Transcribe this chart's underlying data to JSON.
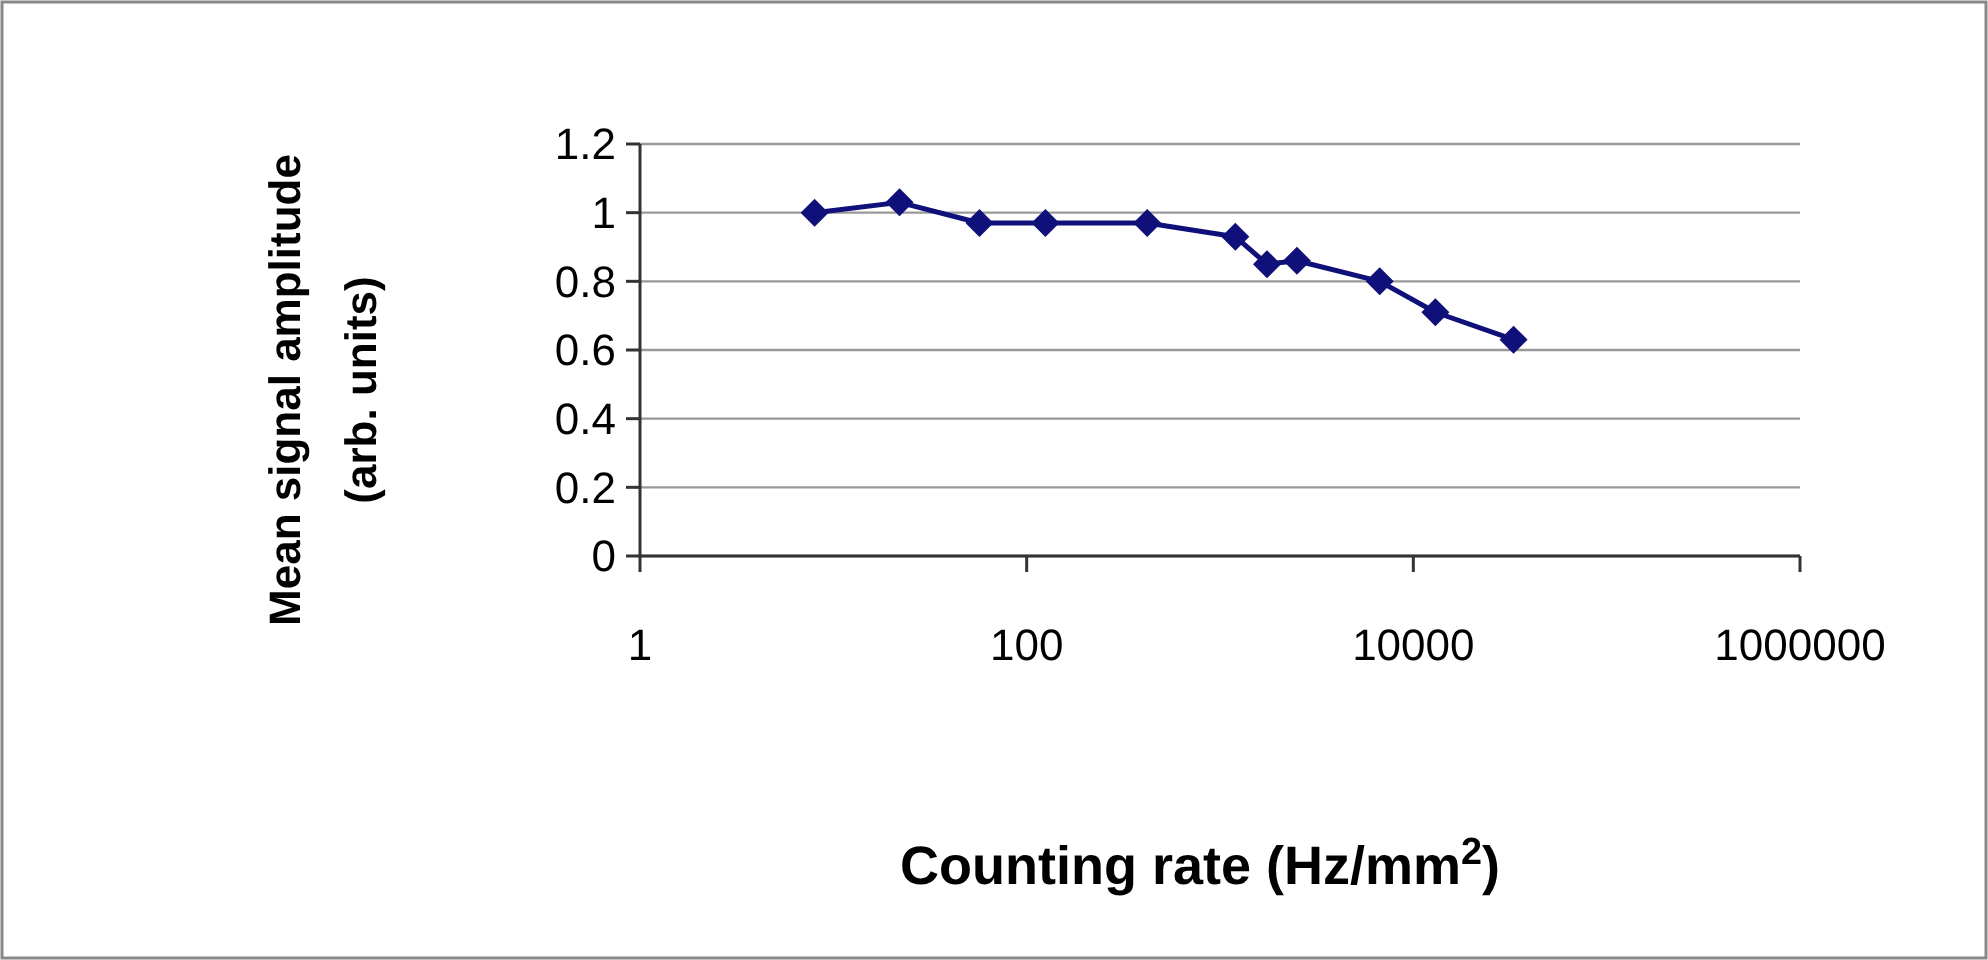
{
  "chart_data": {
    "type": "line",
    "xlabel": "Counting rate (Hz/mm$^{2}$)",
    "ylabel": "Mean signal amplitude\n(arb. units)",
    "x": [
      8,
      22,
      57,
      125,
      420,
      1200,
      1750,
      2500,
      6700,
      13000,
      33000
    ],
    "series": [
      {
        "color": "#10107a",
        "values": [
          1.0,
          1.03,
          0.97,
          0.97,
          0.97,
          0.93,
          0.85,
          0.86,
          0.8,
          0.71,
          0.63
        ]
      }
    ],
    "log": "x",
    "xlim": [
      1,
      1000000
    ],
    "xticks": [
      1,
      100,
      10000,
      1000000
    ],
    "ylim": [
      0,
      1.2
    ],
    "yticks": [
      0,
      0.2,
      0.4,
      0.6,
      0.8,
      1,
      1.2
    ],
    "grid": "y",
    "marker": "diamond",
    "line_style": "solid"
  }
}
